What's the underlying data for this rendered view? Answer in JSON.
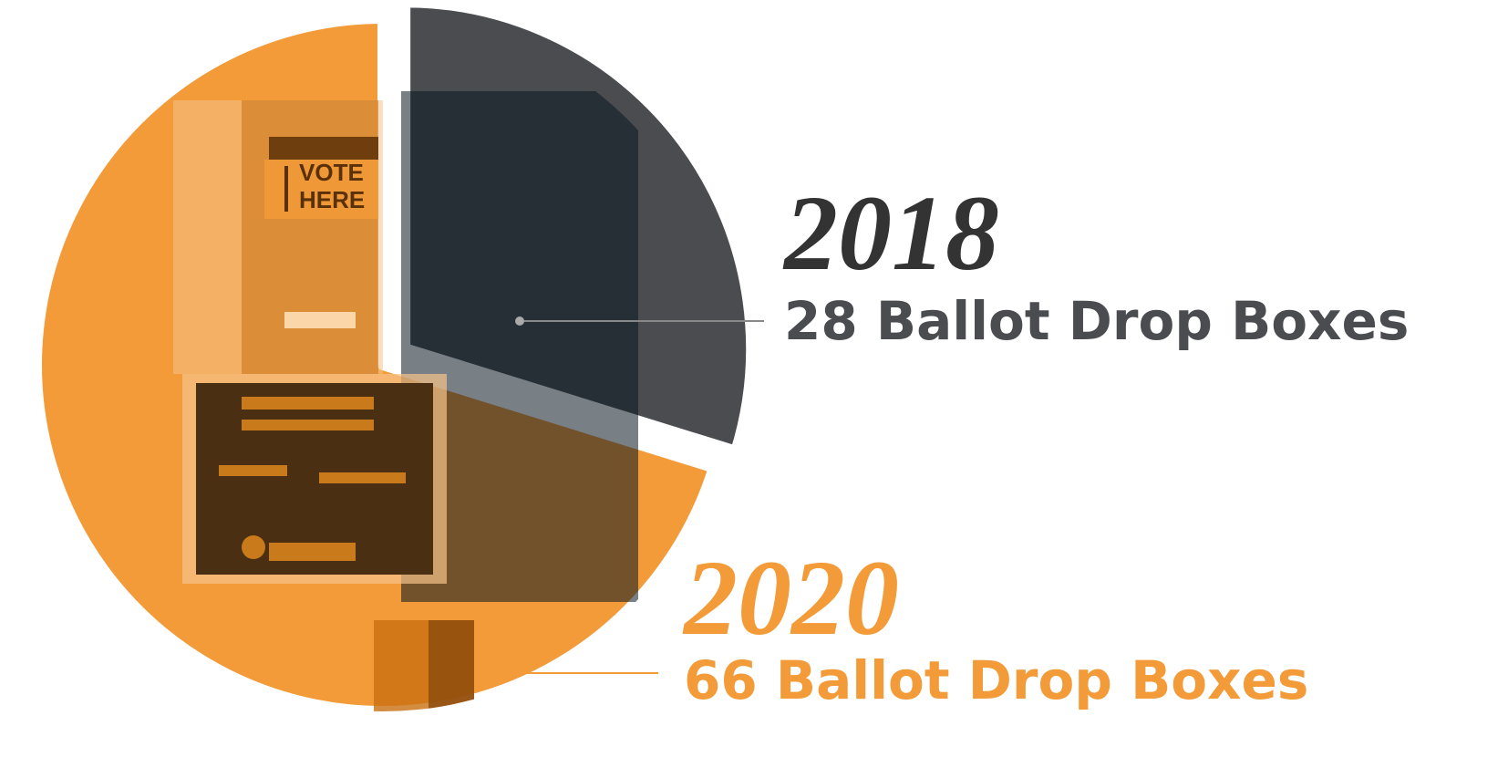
{
  "chart_data": {
    "type": "pie",
    "categories": [
      "2018",
      "2020"
    ],
    "values": [
      28,
      66
    ],
    "value_labels": [
      "28 Ballot Drop Boxes",
      "66 Ballot Drop Boxes"
    ],
    "colors": [
      "#4b4c50",
      "#f29b38"
    ],
    "annotations": [
      "VOTE",
      "HERE"
    ]
  }
}
